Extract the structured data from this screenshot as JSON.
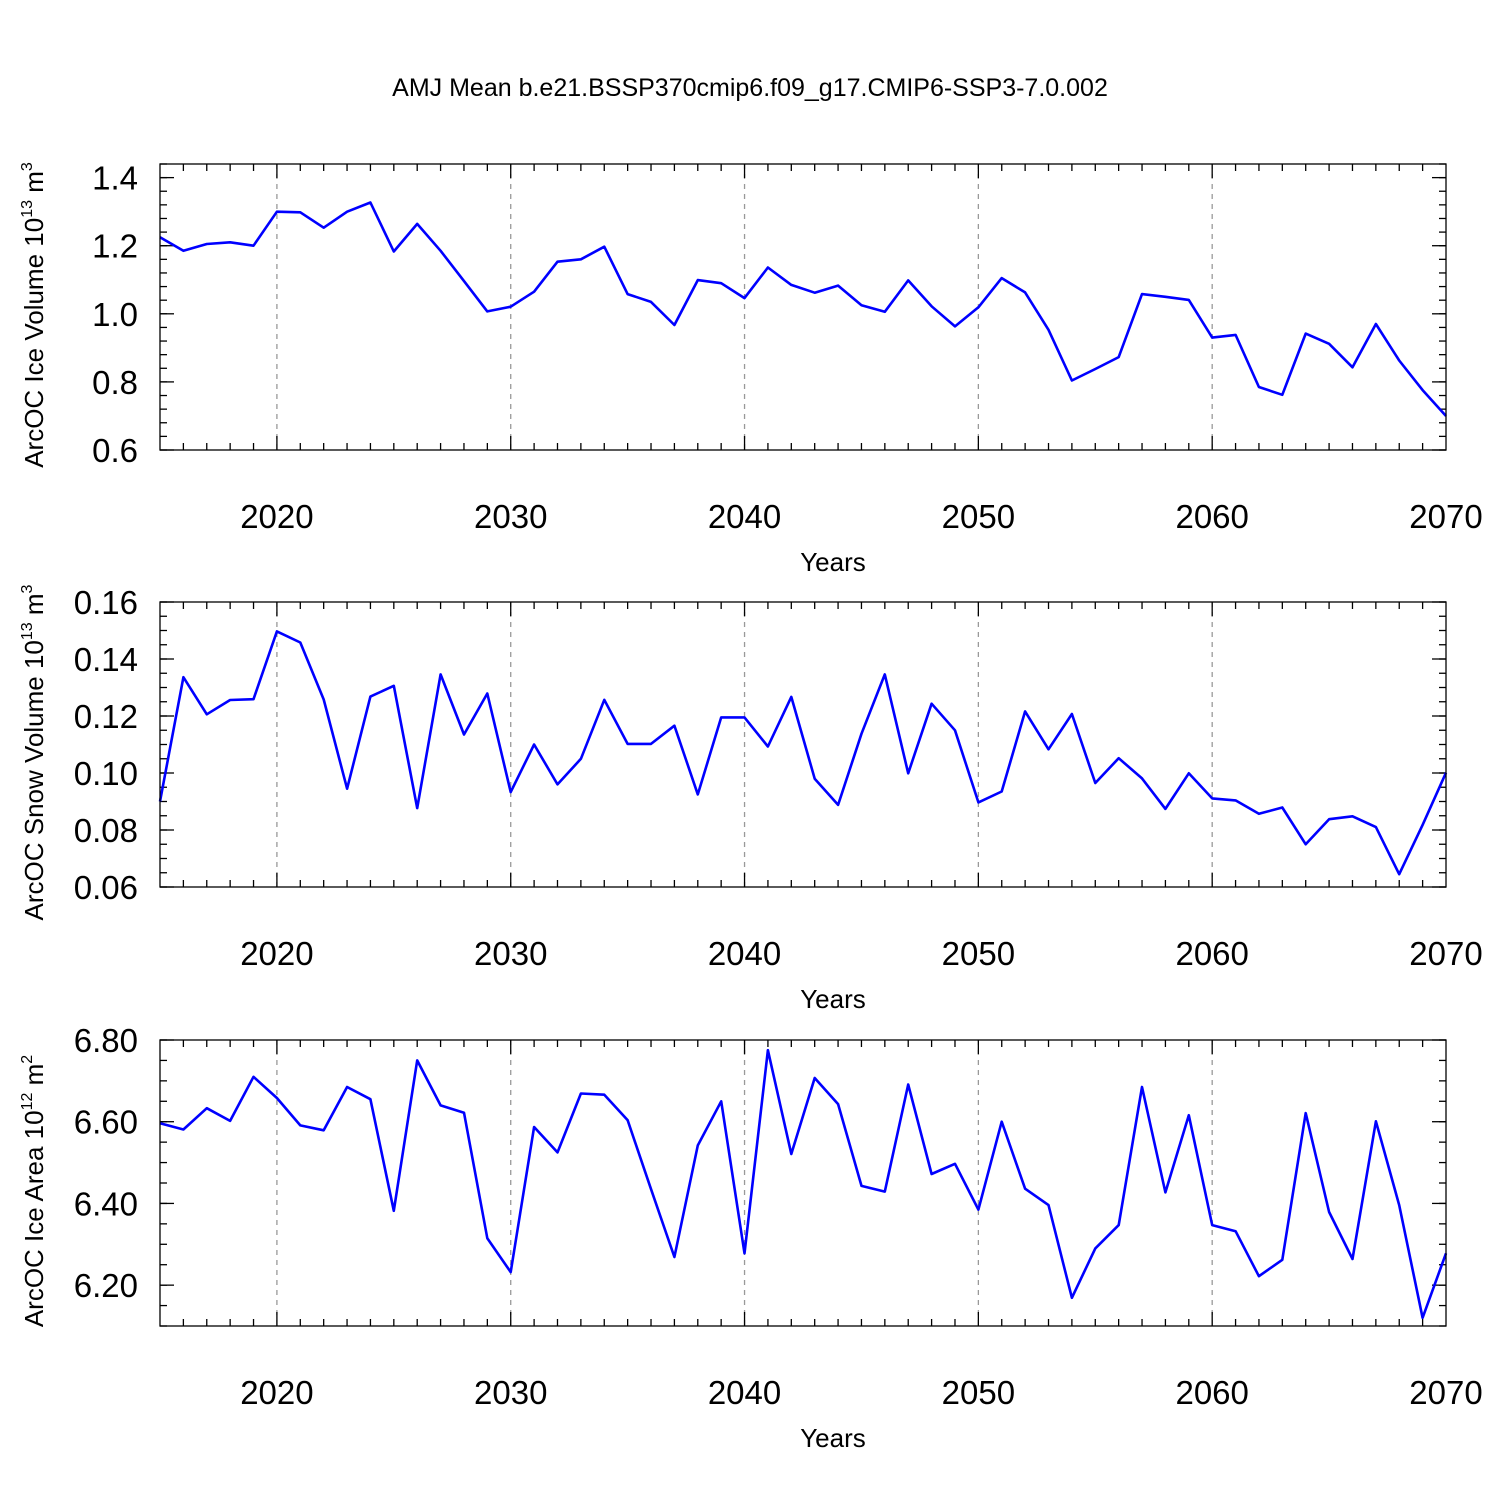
{
  "title": "AMJ Mean b.e21.BSSP370cmip6.f09_g17.CMIP6-SSP3-7.0.002",
  "colors": {
    "series": "#0000ff",
    "grid": "#999999",
    "axis": "#000000"
  },
  "chart_data": [
    {
      "type": "line",
      "name": "ice-volume",
      "ylabel": "ArcOC Ice Volume",
      "yunit_base": "10",
      "yunit_exp": "13",
      "yunit_tail": " m",
      "yunit_pow": "3",
      "xlabel": "Years",
      "xlim": [
        2015,
        2070
      ],
      "ylim": [
        0.6,
        1.44
      ],
      "yticks": [
        0.6,
        0.8,
        1.0,
        1.2,
        1.4
      ],
      "yticklabels": [
        "0.6",
        "0.8",
        "1.0",
        "1.2",
        "1.4"
      ],
      "yminor_step": 0.04,
      "xticks": [
        2020,
        2030,
        2040,
        2050,
        2060,
        2070
      ],
      "xticklabels": [
        "2020",
        "2030",
        "2040",
        "2050",
        "2060",
        "2070"
      ],
      "grid": "vertical-dashed",
      "x": [
        2015,
        2016,
        2017,
        2018,
        2019,
        2020,
        2021,
        2022,
        2023,
        2024,
        2025,
        2026,
        2027,
        2028,
        2029,
        2030,
        2031,
        2032,
        2033,
        2034,
        2035,
        2036,
        2037,
        2038,
        2039,
        2040,
        2041,
        2042,
        2043,
        2044,
        2045,
        2046,
        2047,
        2048,
        2049,
        2050,
        2051,
        2052,
        2053,
        2054,
        2055,
        2056,
        2057,
        2058,
        2059,
        2060,
        2061,
        2062,
        2063,
        2064,
        2065,
        2066,
        2067,
        2068,
        2069,
        2070
      ],
      "y": [
        1.225,
        1.185,
        1.205,
        1.21,
        1.2,
        1.3,
        1.298,
        1.253,
        1.3,
        1.327,
        1.183,
        1.264,
        1.185,
        1.096,
        1.007,
        1.021,
        1.065,
        1.153,
        1.16,
        1.197,
        1.058,
        1.035,
        0.967,
        1.099,
        1.09,
        1.046,
        1.136,
        1.085,
        1.062,
        1.083,
        1.025,
        1.006,
        1.098,
        1.022,
        0.963,
        1.019,
        1.105,
        1.063,
        0.953,
        0.804,
        0.838,
        0.873,
        1.058,
        1.05,
        1.041,
        0.93,
        0.938,
        0.785,
        0.762,
        0.942,
        0.912,
        0.843,
        0.97,
        0.863,
        0.776,
        0.7
      ]
    },
    {
      "type": "line",
      "name": "snow-volume",
      "ylabel": "ArcOC Snow Volume",
      "yunit_base": "10",
      "yunit_exp": "13",
      "yunit_tail": " m",
      "yunit_pow": "3",
      "xlabel": "Years",
      "xlim": [
        2015,
        2070
      ],
      "ylim": [
        0.06,
        0.16
      ],
      "yticks": [
        0.06,
        0.08,
        0.1,
        0.12,
        0.14,
        0.16
      ],
      "yticklabels": [
        "0.06",
        "0.08",
        "0.10",
        "0.12",
        "0.14",
        "0.16"
      ],
      "yminor_step": 0.005,
      "xticks": [
        2020,
        2030,
        2040,
        2050,
        2060,
        2070
      ],
      "xticklabels": [
        "2020",
        "2030",
        "2040",
        "2050",
        "2060",
        "2070"
      ],
      "grid": "vertical-dashed",
      "x": [
        2015,
        2016,
        2017,
        2018,
        2019,
        2020,
        2021,
        2022,
        2023,
        2024,
        2025,
        2026,
        2027,
        2028,
        2029,
        2030,
        2031,
        2032,
        2033,
        2034,
        2035,
        2036,
        2037,
        2038,
        2039,
        2040,
        2041,
        2042,
        2043,
        2044,
        2045,
        2046,
        2047,
        2048,
        2049,
        2050,
        2051,
        2052,
        2053,
        2054,
        2055,
        2056,
        2057,
        2058,
        2059,
        2060,
        2061,
        2062,
        2063,
        2064,
        2065,
        2066,
        2067,
        2068,
        2069,
        2070
      ],
      "y": [
        0.09,
        0.1336,
        0.1206,
        0.1256,
        0.1259,
        0.1497,
        0.1458,
        0.1258,
        0.0945,
        0.1268,
        0.1306,
        0.0877,
        0.1346,
        0.1135,
        0.1279,
        0.0933,
        0.11,
        0.096,
        0.105,
        0.1257,
        0.1102,
        0.1102,
        0.1166,
        0.0925,
        0.1195,
        0.1195,
        0.1093,
        0.1267,
        0.098,
        0.0888,
        0.1138,
        0.1346,
        0.0999,
        0.1243,
        0.115,
        0.0897,
        0.0935,
        0.1216,
        0.1083,
        0.1207,
        0.0965,
        0.1052,
        0.0981,
        0.0874,
        0.0999,
        0.0911,
        0.0904,
        0.0857,
        0.0879,
        0.075,
        0.0838,
        0.0848,
        0.081,
        0.0645,
        0.0818,
        0.1001
      ]
    },
    {
      "type": "line",
      "name": "ice-area",
      "ylabel": "ArcOC Ice Area",
      "yunit_base": "10",
      "yunit_exp": "12",
      "yunit_tail": " m",
      "yunit_pow": "2",
      "xlabel": "Years",
      "xlim": [
        2015,
        2070
      ],
      "ylim": [
        6.1,
        6.8
      ],
      "yticks": [
        6.2,
        6.4,
        6.6,
        6.8
      ],
      "yticklabels": [
        "6.20",
        "6.40",
        "6.60",
        "6.80"
      ],
      "yminor_step": 0.05,
      "xticks": [
        2020,
        2030,
        2040,
        2050,
        2060,
        2070
      ],
      "xticklabels": [
        "2020",
        "2030",
        "2040",
        "2050",
        "2060",
        "2070"
      ],
      "grid": "vertical-dashed",
      "x": [
        2015,
        2016,
        2017,
        2018,
        2019,
        2020,
        2021,
        2022,
        2023,
        2024,
        2025,
        2026,
        2027,
        2028,
        2029,
        2030,
        2031,
        2032,
        2033,
        2034,
        2035,
        2036,
        2037,
        2038,
        2039,
        2040,
        2041,
        2042,
        2043,
        2044,
        2045,
        2046,
        2047,
        2048,
        2049,
        2050,
        2051,
        2052,
        2053,
        2054,
        2055,
        2056,
        2057,
        2058,
        2059,
        2060,
        2061,
        2062,
        2063,
        2064,
        2065,
        2066,
        2067,
        2068,
        2069,
        2070
      ],
      "y": [
        6.596,
        6.581,
        6.633,
        6.602,
        6.71,
        6.658,
        6.591,
        6.579,
        6.685,
        6.655,
        6.382,
        6.75,
        6.64,
        6.622,
        6.315,
        6.232,
        6.587,
        6.525,
        6.669,
        6.666,
        6.604,
        6.435,
        6.269,
        6.542,
        6.65,
        6.278,
        6.775,
        6.521,
        6.707,
        6.643,
        6.443,
        6.429,
        6.691,
        6.472,
        6.497,
        6.385,
        6.6,
        6.436,
        6.396,
        6.169,
        6.29,
        6.347,
        6.685,
        6.427,
        6.616,
        6.347,
        6.332,
        6.222,
        6.262,
        6.621,
        6.379,
        6.264,
        6.601,
        6.396,
        6.12,
        6.278
      ]
    }
  ]
}
